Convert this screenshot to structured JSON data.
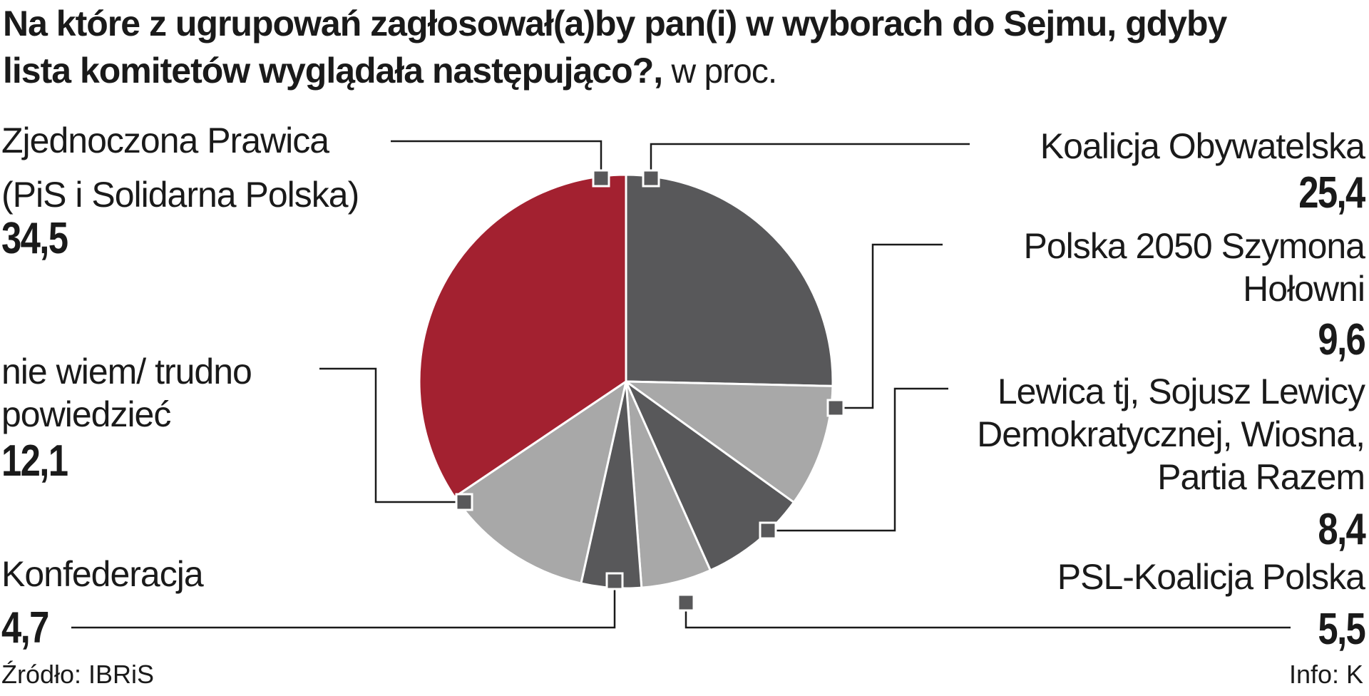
{
  "title": {
    "line1": "Na które z ugrupowań zagłosował(a)by pan(i) w wyborach do Sejmu, gdyby",
    "line2": "lista komitetów wyglądała następująco?,",
    "unit": " w proc."
  },
  "source": "Źródło: IBRiS",
  "credit": "Info: K",
  "chart_data": {
    "type": "pie",
    "title": "Na które z ugrupowań zagłosował(a)by pan(i) w wyborach do Sejmu, gdyby lista komitetów wyglądała następująco?, w proc.",
    "slices": [
      {
        "label_lines": [
          "Koalicja Obywatelska"
        ],
        "value": 25.4,
        "value_text": "25,4",
        "color": "#58585a"
      },
      {
        "label_lines": [
          "Polska 2050 Szymona",
          "Hołowni"
        ],
        "value": 9.6,
        "value_text": "9,6",
        "color": "#a8a8a8"
      },
      {
        "label_lines": [
          "Lewica tj, Sojusz Lewicy",
          "Demokratycznej, Wiosna,",
          "Partia Razem"
        ],
        "value": 8.4,
        "value_text": "8,4",
        "color": "#58585a"
      },
      {
        "label_lines": [
          "PSL-Koalicja Polska"
        ],
        "value": 5.5,
        "value_text": "5,5",
        "color": "#a8a8a8"
      },
      {
        "label_lines": [
          "Konfederacja"
        ],
        "value": 4.7,
        "value_text": "4,7",
        "color": "#58585a"
      },
      {
        "label_lines": [
          "nie wiem/ trudno",
          "powiedzieć"
        ],
        "value": 12.1,
        "value_text": "12,1",
        "color": "#a8a8a8"
      },
      {
        "label_lines": [
          "Zjednoczona Prawica",
          "(PiS i Solidarna Polska)"
        ],
        "value": 34.5,
        "value_text": "34,5",
        "color": "#a32130"
      }
    ]
  }
}
